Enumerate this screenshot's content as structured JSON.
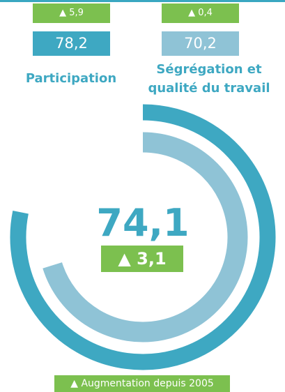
{
  "chart_data": {
    "type": "radial_bar",
    "lim": [
      0,
      100
    ],
    "series": [
      {
        "name": "Participation",
        "color": "#3ea8c2",
        "value": 78.2,
        "value_label": "78,2",
        "change_label": "5,9"
      },
      {
        "name": "Ségrégation et qualité du travail",
        "color": "#8fc3d6",
        "value": 70.2,
        "value_label": "70,2",
        "change_label": "0,4"
      }
    ],
    "total_label": "74,1",
    "total_change_label": "3,1",
    "legend": "Augmentation depuis 2005",
    "change_color": "#7cc04f"
  }
}
